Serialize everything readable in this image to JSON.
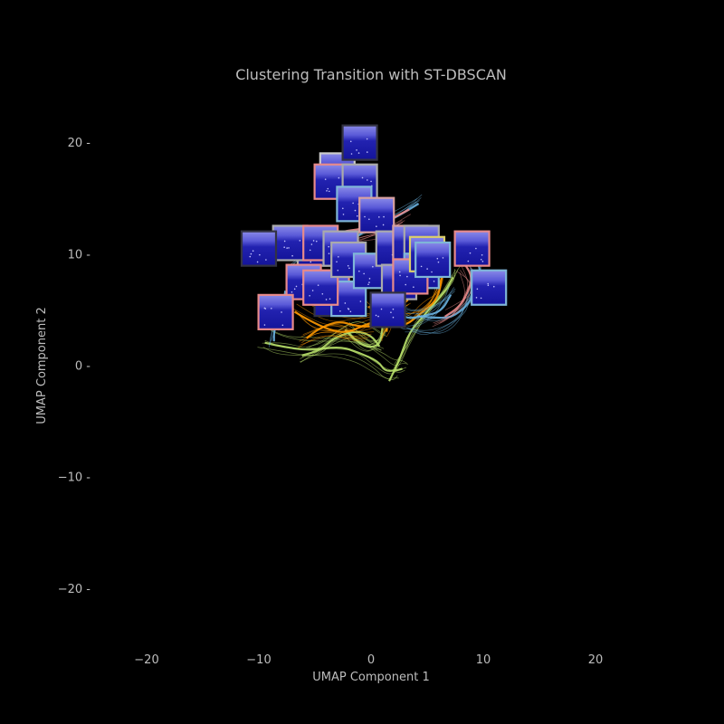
{
  "chart_data": {
    "type": "scatter",
    "title": "Clustering Transition with ST-DBSCAN",
    "xlabel": "UMAP Component 1",
    "ylabel": "UMAP Component 2",
    "xlim": [
      -25,
      25
    ],
    "ylim": [
      -25,
      25
    ],
    "x_ticks": [
      -20,
      -10,
      0,
      10,
      20
    ],
    "y_ticks": [
      20,
      10,
      0,
      -10,
      -20
    ],
    "x_tick_labels": [
      "−20",
      "−10",
      "0",
      "10",
      "20"
    ],
    "y_tick_labels": [
      "20 -",
      "10 -",
      "0 -",
      "−10 -",
      "−20 -"
    ],
    "grid": false,
    "background": "#000000",
    "trajectories": [
      {
        "color": "#b8e06a",
        "points": [
          [
            -9.5,
            2.3
          ],
          [
            -8,
            1.8
          ],
          [
            -5.5,
            1.6
          ],
          [
            -3,
            1.7
          ],
          [
            -1,
            1.3
          ],
          [
            0.5,
            0.3
          ],
          [
            1.5,
            -0.5
          ],
          [
            2.5,
            -0.5
          ],
          [
            3,
            -0.3
          ]
        ]
      },
      {
        "color": "#b8e06a",
        "points": [
          [
            2,
            -0.5
          ],
          [
            3,
            1.5
          ],
          [
            4,
            3.5
          ],
          [
            5.5,
            5.5
          ],
          [
            7,
            7
          ],
          [
            7.5,
            8.5
          ]
        ]
      },
      {
        "color": "#b8e06a",
        "points": [
          [
            -6,
            1
          ],
          [
            -4.5,
            1.5
          ],
          [
            -3,
            2.8
          ],
          [
            -1.5,
            3.2
          ],
          [
            0,
            2.5
          ],
          [
            1,
            1.8
          ]
        ]
      },
      {
        "color": "#b8e06a",
        "points": [
          [
            -2,
            3.5
          ],
          [
            -1,
            2.5
          ],
          [
            0,
            1.8
          ],
          [
            1,
            2.5
          ],
          [
            1.5,
            4
          ]
        ]
      },
      {
        "color": "#ff9900",
        "points": [
          [
            -6.5,
            5.5
          ],
          [
            -5,
            4.5
          ],
          [
            -3.5,
            4
          ],
          [
            -2,
            3.8
          ],
          [
            -0.5,
            4
          ],
          [
            0.5,
            4.5
          ]
        ]
      },
      {
        "color": "#ff9900",
        "points": [
          [
            -6,
            2.5
          ],
          [
            -4.5,
            3.2
          ],
          [
            -3,
            3.6
          ],
          [
            -1.5,
            3.1
          ],
          [
            0,
            3
          ]
        ]
      },
      {
        "color": "#ff9900",
        "points": [
          [
            0,
            6
          ],
          [
            1.5,
            4.5
          ],
          [
            3,
            4
          ],
          [
            4.5,
            5
          ],
          [
            6,
            6.5
          ],
          [
            6.5,
            9
          ]
        ]
      },
      {
        "color": "#ff9900",
        "points": [
          [
            1,
            2.5
          ],
          [
            1.5,
            3.3
          ],
          [
            2,
            4.2
          ],
          [
            3,
            5.2
          ]
        ]
      },
      {
        "color": "#6ab3e0",
        "points": [
          [
            -7.5,
            6.5
          ],
          [
            -8,
            5
          ],
          [
            -8.5,
            3.5
          ],
          [
            -8.7,
            2.2
          ]
        ]
      },
      {
        "color": "#6ab3e0",
        "points": [
          [
            -7.5,
            8
          ],
          [
            -6,
            9.5
          ],
          [
            -4,
            10.5
          ],
          [
            -2,
            11
          ],
          [
            0,
            12
          ],
          [
            2,
            13
          ],
          [
            4,
            14.5
          ]
        ]
      },
      {
        "color": "#6ab3e0",
        "points": [
          [
            3.5,
            4
          ],
          [
            5,
            3.5
          ],
          [
            7,
            3.8
          ],
          [
            8.5,
            5
          ],
          [
            9,
            6.5
          ],
          [
            9.5,
            8
          ],
          [
            9,
            9.5
          ]
        ]
      },
      {
        "color": "#6ab3e0",
        "points": [
          [
            2,
            5
          ],
          [
            3,
            4
          ],
          [
            4.5,
            4.2
          ],
          [
            6,
            5
          ],
          [
            7,
            6.5
          ]
        ]
      },
      {
        "color": "#e88a8a",
        "points": [
          [
            -6,
            8
          ],
          [
            -7,
            7
          ],
          [
            -7.5,
            5.5
          ],
          [
            -7,
            4.5
          ]
        ]
      },
      {
        "color": "#e88a8a",
        "points": [
          [
            6,
            4
          ],
          [
            7.5,
            4.8
          ],
          [
            8.5,
            6
          ],
          [
            9,
            7.5
          ],
          [
            8,
            9
          ]
        ]
      },
      {
        "color": "#e88a8a",
        "points": [
          [
            -5,
            10
          ],
          [
            -3,
            11
          ],
          [
            -1,
            11.5
          ],
          [
            1,
            12
          ],
          [
            3,
            13
          ]
        ]
      }
    ],
    "frames": [
      {
        "x": -5,
        "y": 10.5,
        "border": "#aaaaaa"
      },
      {
        "x": -7.2,
        "y": 11,
        "border": "#aaaaaa"
      },
      {
        "x": -10,
        "y": 10.5,
        "border": "#333344"
      },
      {
        "x": -4.5,
        "y": 11,
        "border": "#e88a8a"
      },
      {
        "x": -2.7,
        "y": 10.5,
        "border": "#aaaaaa"
      },
      {
        "x": -3.5,
        "y": 6,
        "border": "#333344"
      },
      {
        "x": -6,
        "y": 7.5,
        "border": "#e88a8a"
      },
      {
        "x": -3.5,
        "y": 7,
        "border": "#e88a8a"
      },
      {
        "x": -8.5,
        "y": 4.8,
        "border": "#e88a8a"
      },
      {
        "x": -2,
        "y": 6,
        "border": "#7fb6d8"
      },
      {
        "x": -4.5,
        "y": 7,
        "border": "#e88a8a"
      },
      {
        "x": -3,
        "y": 17.5,
        "border": "#cccccc"
      },
      {
        "x": -1,
        "y": 20,
        "border": "#333344"
      },
      {
        "x": -3.5,
        "y": 16.5,
        "border": "#e88a8a"
      },
      {
        "x": -1,
        "y": 16.5,
        "border": "#aaaaaa"
      },
      {
        "x": -1.5,
        "y": 14.5,
        "border": "#7fb6d8"
      },
      {
        "x": 0.5,
        "y": 13.5,
        "border": "#d8a0a0"
      },
      {
        "x": -2,
        "y": 9.5,
        "border": "#aaaaaa"
      },
      {
        "x": 0,
        "y": 8.5,
        "border": "#7fb6d8"
      },
      {
        "x": 2,
        "y": 10.5,
        "border": "#aaaaaa"
      },
      {
        "x": 3.5,
        "y": 11,
        "border": "#d8a0a0"
      },
      {
        "x": 4.5,
        "y": 11,
        "border": "#aaaaaa"
      },
      {
        "x": 2.5,
        "y": 7.5,
        "border": "#aaaaaa"
      },
      {
        "x": 4.5,
        "y": 8.5,
        "border": "#7fb6d8"
      },
      {
        "x": 3.5,
        "y": 8,
        "border": "#e88a8a"
      },
      {
        "x": 5,
        "y": 10,
        "border": "#dccf6a"
      },
      {
        "x": 5.5,
        "y": 9.5,
        "border": "#7fb6d8"
      },
      {
        "x": 9,
        "y": 10.5,
        "border": "#e88a8a"
      },
      {
        "x": 10.5,
        "y": 7,
        "border": "#7fb6d8"
      },
      {
        "x": 1.5,
        "y": 5,
        "border": "#333344"
      }
    ]
  }
}
